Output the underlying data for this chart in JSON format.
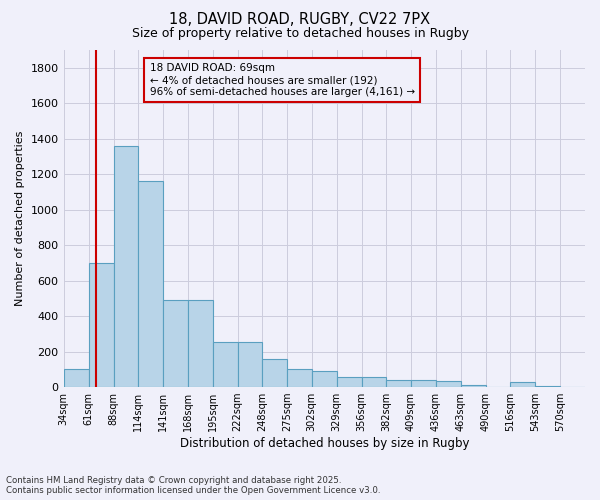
{
  "title_line1": "18, DAVID ROAD, RUGBY, CV22 7PX",
  "title_line2": "Size of property relative to detached houses in Rugby",
  "xlabel": "Distribution of detached houses by size in Rugby",
  "ylabel": "Number of detached properties",
  "footer_line1": "Contains HM Land Registry data © Crown copyright and database right 2025.",
  "footer_line2": "Contains public sector information licensed under the Open Government Licence v3.0.",
  "annotation_line1": "18 DAVID ROAD: 69sqm",
  "annotation_line2": "← 4% of detached houses are smaller (192)",
  "annotation_line3": "96% of semi-detached houses are larger (4,161) →",
  "property_size": 69,
  "bar_color": "#b8d4e8",
  "bar_edge_color": "#5a9fc0",
  "vline_color": "#cc0000",
  "background_color": "#f0f0fa",
  "grid_color": "#ccccdd",
  "bin_labels": [
    "34sqm",
    "61sqm",
    "88sqm",
    "114sqm",
    "141sqm",
    "168sqm",
    "195sqm",
    "222sqm",
    "248sqm",
    "275sqm",
    "302sqm",
    "329sqm",
    "356sqm",
    "382sqm",
    "409sqm",
    "436sqm",
    "463sqm",
    "490sqm",
    "516sqm",
    "543sqm",
    "570sqm"
  ],
  "bin_left_edges": [
    34,
    61,
    88,
    114,
    141,
    168,
    195,
    222,
    248,
    275,
    302,
    329,
    356,
    382,
    409,
    436,
    463,
    490,
    516,
    543,
    570
  ],
  "bar_heights": [
    100,
    700,
    1360,
    1160,
    490,
    490,
    255,
    255,
    160,
    100,
    90,
    55,
    55,
    40,
    40,
    35,
    10,
    0,
    30,
    5,
    0
  ],
  "ylim": [
    0,
    1900
  ],
  "yticks": [
    0,
    200,
    400,
    600,
    800,
    1000,
    1200,
    1400,
    1600,
    1800
  ]
}
